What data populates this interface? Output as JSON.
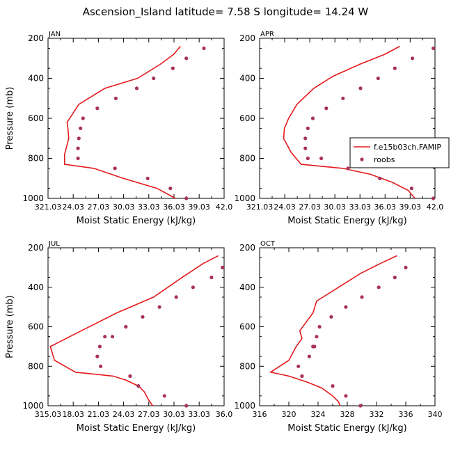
{
  "figure_title": "Ascension_Island   latitude= 7.58 S longitude= 14.24 W",
  "colors": {
    "model": "#e41a1c",
    "obs": "#a8325a"
  },
  "chart_data": [
    {
      "type": "line",
      "title": "JAN",
      "xlabel": "Moist Static Energy (kJ/kg)",
      "ylabel": "Pressure (mb)",
      "xlim": [
        321.03,
        342.0
      ],
      "ylim": [
        1000,
        200
      ],
      "y_inverted": true,
      "xticks": [
        321.03,
        324.03,
        327.03,
        330.03,
        333.03,
        336.03,
        339.03,
        342.0
      ],
      "xtick_labels": [
        "321.03",
        "24.03",
        "27.03",
        "30.03",
        "33.03",
        "36.03",
        "39.03",
        "42.0"
      ],
      "yticks": [
        200,
        400,
        600,
        800,
        1000
      ],
      "series": [
        {
          "kind": "line",
          "x": [
            336.8,
            336.0,
            334.4,
            331.7,
            327.8,
            324.7,
            323.3,
            323.4,
            323.5,
            323.0,
            323.0,
            326.5,
            330.0,
            334.0,
            336.2
          ],
          "y": [
            240,
            280,
            330,
            400,
            450,
            530,
            620,
            650,
            700,
            780,
            830,
            850,
            900,
            950,
            1000
          ]
        },
        {
          "kind": "scatter",
          "x": [
            339.6,
            337.5,
            335.9,
            333.6,
            331.6,
            329.1,
            326.9,
            325.2,
            324.9,
            324.7,
            324.6,
            324.6,
            329.0,
            332.9,
            335.6,
            337.5
          ],
          "y": [
            250,
            300,
            350,
            400,
            450,
            500,
            550,
            600,
            650,
            700,
            750,
            800,
            850,
            900,
            950,
            1000
          ]
        }
      ]
    },
    {
      "type": "line",
      "title": "APR",
      "xlabel": "Moist Static Energy (kJ/kg)",
      "ylabel": "",
      "xlim": [
        321.03,
        342.0
      ],
      "ylim": [
        1000,
        200
      ],
      "y_inverted": true,
      "xticks": [
        321.03,
        324.03,
        327.03,
        330.03,
        333.03,
        336.03,
        339.03,
        342.0
      ],
      "xtick_labels": [
        "321.03",
        "24.03",
        "27.03",
        "30.03",
        "33.03",
        "36.03",
        "39.03",
        "42.0"
      ],
      "yticks": [
        200,
        400,
        600,
        800,
        1000
      ],
      "legend": {
        "placement": "right",
        "entries": [
          "f.e15b03ch.FAMIP",
          "roobs"
        ]
      },
      "series": [
        {
          "name": "f.e15b03ch.FAMIP",
          "kind": "line",
          "x": [
            337.8,
            336.0,
            333.0,
            329.8,
            327.5,
            325.5,
            324.5,
            324.0,
            323.9,
            324.8,
            326.0,
            331.0,
            334.3,
            336.9,
            338.8,
            339.6
          ],
          "y": [
            240,
            280,
            330,
            390,
            450,
            530,
            600,
            650,
            700,
            770,
            830,
            850,
            880,
            920,
            960,
            1000
          ]
        },
        {
          "name": "roobs",
          "kind": "scatter",
          "x": [
            341.8,
            339.3,
            337.2,
            335.2,
            333.1,
            331.0,
            329.0,
            327.4,
            326.8,
            326.5,
            326.5,
            326.8,
            328.4,
            331.6,
            335.4,
            339.2,
            341.8
          ],
          "y": [
            250,
            300,
            350,
            400,
            450,
            500,
            550,
            600,
            650,
            700,
            750,
            800,
            800,
            850,
            900,
            950,
            1000
          ]
        }
      ]
    },
    {
      "type": "line",
      "title": "JUL",
      "xlabel": "Moist Static Energy (kJ/kg)",
      "ylabel": "Pressure (mb)",
      "xlim": [
        315.03,
        336.0
      ],
      "ylim": [
        1000,
        200
      ],
      "y_inverted": true,
      "xticks": [
        315.03,
        318.03,
        321.03,
        324.03,
        327.03,
        330.03,
        333.03,
        336.0
      ],
      "xtick_labels": [
        "315.03",
        "18.03",
        "21.03",
        "24.03",
        "27.03",
        "30.03",
        "33.03",
        "36.0"
      ],
      "yticks": [
        200,
        400,
        600,
        800,
        1000
      ],
      "series": [
        {
          "kind": "line",
          "x": [
            335.3,
            333.5,
            331.0,
            327.6,
            323.2,
            319.0,
            315.3,
            315.8,
            318.3,
            322.8,
            324.3,
            325.8,
            326.5,
            327.0,
            327.5
          ],
          "y": [
            240,
            280,
            350,
            450,
            530,
            620,
            700,
            770,
            830,
            850,
            870,
            900,
            930,
            970,
            1000
          ]
        },
        {
          "kind": "scatter",
          "x": [
            335.8,
            334.5,
            332.3,
            330.3,
            328.3,
            326.3,
            324.3,
            322.7,
            321.8,
            321.2,
            320.9,
            321.3,
            324.8,
            325.8,
            328.9,
            331.5
          ],
          "y": [
            300,
            350,
            400,
            450,
            500,
            550,
            600,
            650,
            650,
            700,
            750,
            800,
            850,
            900,
            950,
            1000
          ]
        }
      ]
    },
    {
      "type": "line",
      "title": "OCT",
      "xlabel": "Moist Static Energy (kJ/kg)",
      "ylabel": "",
      "xlim": [
        316,
        340
      ],
      "ylim": [
        1000,
        200
      ],
      "y_inverted": true,
      "xticks": [
        316,
        320,
        324,
        328,
        332,
        336,
        340
      ],
      "xtick_labels": [
        "316",
        "320",
        "324",
        "328",
        "332",
        "336",
        "340"
      ],
      "yticks": [
        200,
        400,
        600,
        800,
        1000
      ],
      "series": [
        {
          "kind": "line",
          "x": [
            334.8,
            332.5,
            329.8,
            326.8,
            323.8,
            323.3,
            321.5,
            321.8,
            321.0,
            320.0,
            317.5,
            320.0,
            322.5,
            324.5,
            326.0,
            326.8,
            327.0
          ],
          "y": [
            240,
            280,
            330,
            400,
            470,
            530,
            620,
            660,
            700,
            770,
            830,
            850,
            880,
            910,
            950,
            980,
            1000
          ]
        },
        {
          "kind": "scatter",
          "x": [
            336.0,
            334.5,
            332.3,
            330.0,
            327.8,
            325.8,
            324.2,
            323.8,
            323.5,
            323.3,
            322.8,
            321.3,
            321.8,
            326.0,
            327.8,
            329.8
          ],
          "y": [
            300,
            350,
            400,
            450,
            500,
            550,
            600,
            650,
            700,
            700,
            750,
            800,
            850,
            900,
            950,
            1000
          ]
        }
      ]
    }
  ]
}
